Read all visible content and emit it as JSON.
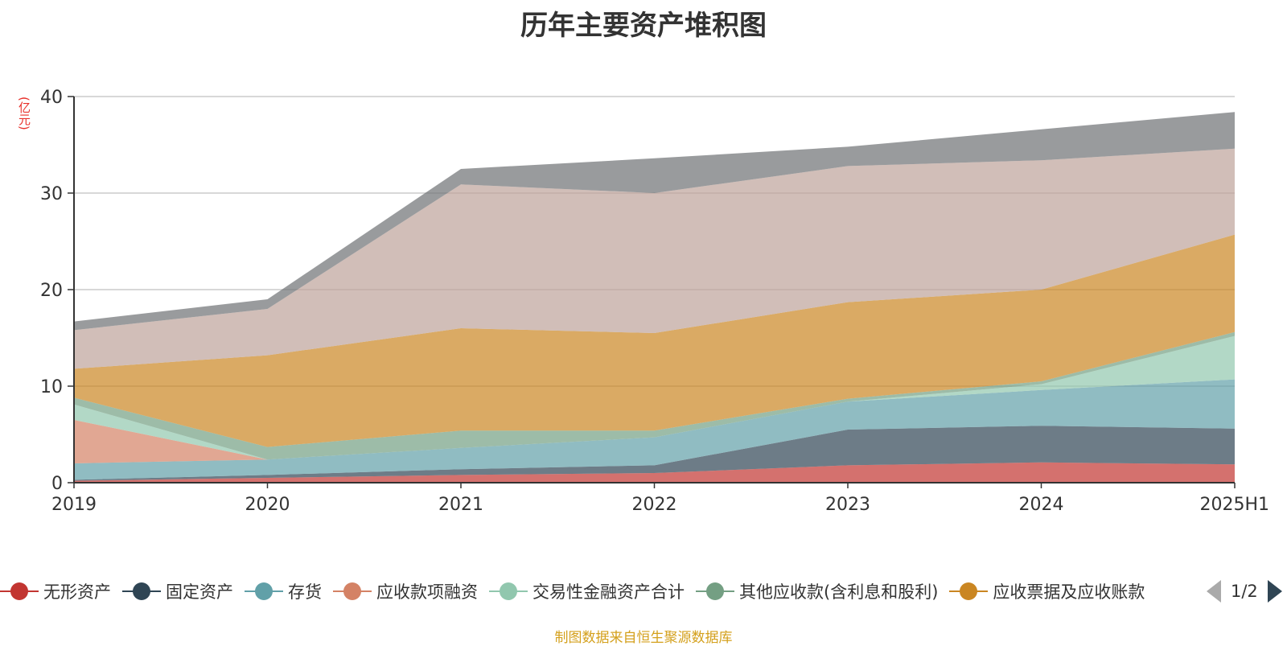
{
  "page": {
    "title": "历年主要资产堆积图",
    "unit": "(亿元)",
    "footer": "制图数据来自恒生聚源数据库"
  },
  "legend": {
    "pager_text": "1/2",
    "items": [
      {
        "label": "无形资产",
        "color": "#c23531"
      },
      {
        "label": "固定资产",
        "color": "#2f4554"
      },
      {
        "label": "存货",
        "color": "#61a0a8"
      },
      {
        "label": "应收款项融资",
        "color": "#d48265"
      },
      {
        "label": "交易性金融资产合计",
        "color": "#91c7ae"
      },
      {
        "label": "其他应收款(含利息和股利)",
        "color": "#749f83"
      },
      {
        "label": "应收票据及应收账款",
        "color": "#ca8622"
      }
    ]
  },
  "chart_data": {
    "type": "area",
    "stacked": true,
    "categories": [
      "2019",
      "2020",
      "2021",
      "2022",
      "2023",
      "2024",
      "2025H1"
    ],
    "ylim": [
      0,
      40
    ],
    "yticks": [
      0,
      10,
      20,
      30,
      40
    ],
    "grid": true,
    "legend_position": "bottom",
    "series": [
      {
        "name": "无形资产",
        "color": "#c23531",
        "values": [
          0.2,
          0.5,
          0.8,
          1.0,
          1.8,
          2.1,
          1.9
        ]
      },
      {
        "name": "固定资产",
        "color": "#2f4554",
        "values": [
          0.1,
          0.3,
          0.6,
          0.8,
          3.7,
          3.8,
          3.7
        ]
      },
      {
        "name": "存货",
        "color": "#61a0a8",
        "values": [
          1.7,
          1.6,
          2.2,
          2.9,
          2.9,
          3.7,
          5.1
        ]
      },
      {
        "name": "应收款项融资",
        "color": "#d48265",
        "values": [
          4.5,
          0.0,
          0.0,
          0.0,
          0.0,
          0.0,
          0.0
        ]
      },
      {
        "name": "交易性金融资产合计",
        "color": "#91c7ae",
        "values": [
          1.6,
          0.0,
          0.0,
          0.0,
          0.0,
          0.6,
          4.5
        ]
      },
      {
        "name": "其他应收款(含利息和股利)",
        "color": "#749f83",
        "values": [
          0.7,
          1.3,
          1.8,
          0.7,
          0.3,
          0.3,
          0.4
        ]
      },
      {
        "color": "#ca8622",
        "values": [
          3.0,
          9.5,
          10.6,
          10.1,
          10.0,
          9.5,
          10.1
        ]
      },
      {
        "color": "#bda29a",
        "values": [
          4.0,
          4.8,
          14.9,
          14.5,
          14.1,
          13.4,
          8.9
        ]
      },
      {
        "color": "#6e7074",
        "values": [
          0.9,
          1.0,
          1.6,
          3.6,
          2.0,
          3.2,
          3.8
        ]
      }
    ]
  }
}
